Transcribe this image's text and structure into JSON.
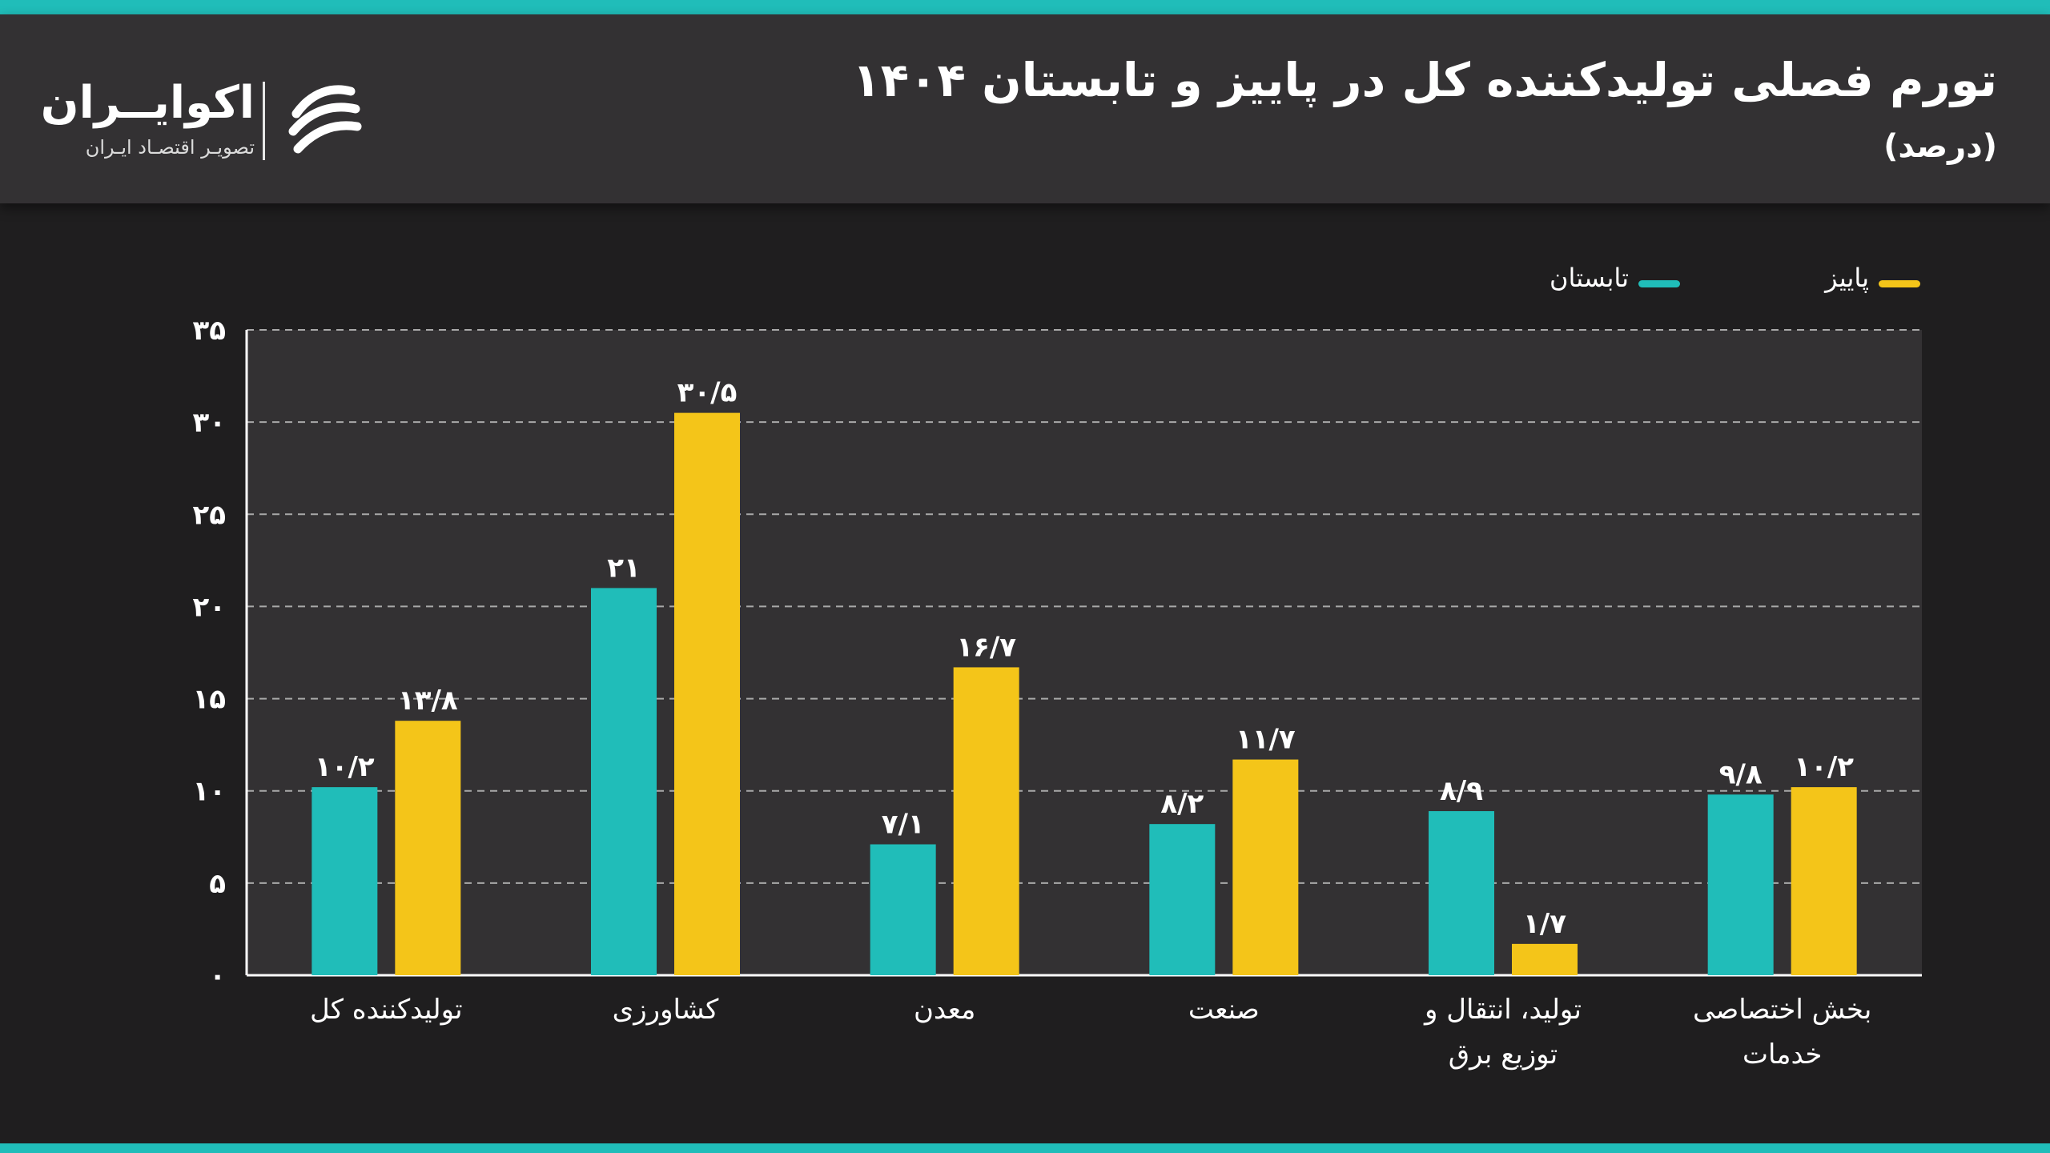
{
  "header": {
    "title": "تورم فصلی تولیدکننده کل در پاییز و تابستان ۱۴۰۴",
    "subtitle": "(درصد)"
  },
  "logo": {
    "name": "اکوایــران",
    "tagline": "تصویـر اقتصـاد ایـران"
  },
  "colors": {
    "accent": "#20bdb9",
    "autumn": "#f4c519",
    "summer": "#20bdb9",
    "background": "#1f1e1f",
    "plot_background": "#333133",
    "header_background": "#333133"
  },
  "legend": {
    "autumn": "پاییز",
    "summer": "تابستان"
  },
  "chart_data": {
    "type": "bar",
    "title": "تورم فصلی تولیدکننده کل در پاییز و تابستان ۱۴۰۴",
    "subtitle": "(درصد)",
    "xlabel": "",
    "ylabel": "",
    "ylim": [
      0,
      35
    ],
    "yticks": [
      0,
      5,
      10,
      15,
      20,
      25,
      30,
      35
    ],
    "ytick_labels": [
      "۰",
      "۵",
      "۱۰",
      "۱۵",
      "۲۰",
      "۲۵",
      "۳۰",
      "۳۵"
    ],
    "grid": true,
    "legend_position": "top-right",
    "categories": [
      [
        "تولیدکننده کل"
      ],
      [
        "کشاورزی"
      ],
      [
        "معدن"
      ],
      [
        "صنعت"
      ],
      [
        "تولید، انتقال و",
        "توزیع برق"
      ],
      [
        "بخش اختصاصی",
        "خدمات"
      ]
    ],
    "series": [
      {
        "name": "تابستان",
        "color": "#20bdb9",
        "values": [
          10.2,
          21,
          7.1,
          8.2,
          8.9,
          9.8
        ],
        "labels": [
          "۱۰/۲",
          "۲۱",
          "۷/۱",
          "۸/۲",
          "۸/۹",
          "۹/۸"
        ]
      },
      {
        "name": "پاییز",
        "color": "#f4c519",
        "values": [
          13.8,
          30.5,
          16.7,
          11.7,
          1.7,
          10.2
        ],
        "labels": [
          "۱۳/۸",
          "۳۰/۵",
          "۱۶/۷",
          "۱۱/۷",
          "۱/۷",
          "۱۰/۲"
        ]
      }
    ]
  }
}
